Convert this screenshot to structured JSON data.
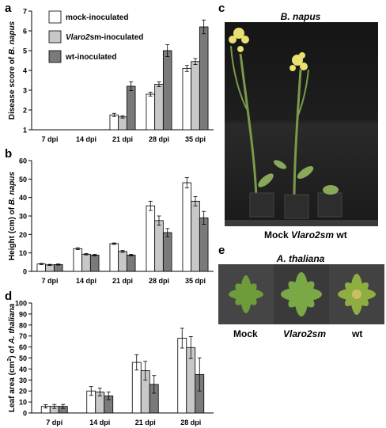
{
  "panels": {
    "a": "a",
    "b": "b",
    "c": "c",
    "d": "d",
    "e": "e"
  },
  "legend": [
    {
      "label_prefix": "mock-inoculated",
      "label_italic": "",
      "label_suffix": "",
      "color": "#ffffff"
    },
    {
      "label_prefix": "",
      "label_italic": "Vlaro2",
      "label_suffix": "sm-inoculated",
      "color": "#c8c8c8"
    },
    {
      "label_prefix": "wt-inoculated",
      "label_italic": "",
      "label_suffix": "",
      "color": "#7a7a7a"
    }
  ],
  "photo_c": {
    "title": "B. napus",
    "caption_plain_left": "Mock ",
    "caption_italic": "Vlaro2sm",
    "caption_plain_right": " wt"
  },
  "photo_e": {
    "title": "A. thaliana",
    "labels": [
      "Mock",
      "Vlaro2sm",
      "wt"
    ]
  },
  "chart_data": [
    {
      "panel": "a",
      "type": "bar",
      "ylabel_prefix": "Disease score of ",
      "ylabel_italic": "B. napus",
      "ylim": [
        1,
        7
      ],
      "yticks": [
        1,
        2,
        3,
        4,
        5,
        6,
        7
      ],
      "categories": [
        "7 dpi",
        "14 dpi",
        "21 dpi",
        "28 dpi",
        "35 dpi"
      ],
      "series": [
        {
          "name": "mock-inoculated",
          "values": [
            1,
            1,
            1.75,
            2.8,
            4.1
          ],
          "errors": [
            0,
            0,
            0.08,
            0.1,
            0.15
          ]
        },
        {
          "name": "Vlaro2sm-inoculated",
          "values": [
            1,
            1,
            1.65,
            3.3,
            4.45
          ],
          "errors": [
            0,
            0,
            0.06,
            0.12,
            0.15
          ]
        },
        {
          "name": "wt-inoculated",
          "values": [
            1,
            1,
            3.2,
            5,
            6.2
          ],
          "errors": [
            0,
            0,
            0.22,
            0.3,
            0.35
          ]
        }
      ]
    },
    {
      "panel": "b",
      "type": "bar",
      "ylabel_prefix": "Height (cm) of ",
      "ylabel_italic": "B. napus",
      "ylim": [
        0,
        60
      ],
      "yticks": [
        0,
        10,
        20,
        30,
        40,
        50,
        60
      ],
      "categories": [
        "7 dpi",
        "14 dpi",
        "21 dpi",
        "28 dpi",
        "35 dpi"
      ],
      "series": [
        {
          "name": "mock-inoculated",
          "values": [
            4,
            12.3,
            15,
            35.5,
            48
          ],
          "errors": [
            0.3,
            0.5,
            0.4,
            2.5,
            2.8
          ]
        },
        {
          "name": "Vlaro2sm-inoculated",
          "values": [
            3.5,
            9.3,
            10.8,
            27.5,
            38
          ],
          "errors": [
            0.3,
            0.4,
            0.5,
            2.5,
            2.5
          ]
        },
        {
          "name": "wt-inoculated",
          "values": [
            3.7,
            8.8,
            8.8,
            21,
            29
          ],
          "errors": [
            0.3,
            0.4,
            0.4,
            2.2,
            3.5
          ]
        }
      ]
    },
    {
      "panel": "d",
      "type": "bar",
      "ylabel_prefix": "Leaf area (cm",
      "ylabel_sup": "2",
      "ylabel_mid": ") of ",
      "ylabel_italic": "A. thaliana",
      "ylim": [
        0,
        100
      ],
      "yticks": [
        0,
        10,
        20,
        30,
        40,
        50,
        60,
        70,
        80,
        90,
        100
      ],
      "categories": [
        "7 dpi",
        "14 dpi",
        "21 dpi",
        "28 dpi"
      ],
      "series": [
        {
          "name": "mock-inoculated",
          "values": [
            6,
            20,
            46,
            68
          ],
          "errors": [
            1.5,
            4,
            7,
            9
          ]
        },
        {
          "name": "Vlaro2sm-inoculated",
          "values": [
            6,
            19,
            38.5,
            59.5
          ],
          "errors": [
            1.8,
            3.5,
            8.5,
            10
          ]
        },
        {
          "name": "wt-inoculated",
          "values": [
            6,
            15.5,
            26,
            35
          ],
          "errors": [
            1.8,
            3.5,
            8,
            15
          ]
        }
      ]
    }
  ]
}
